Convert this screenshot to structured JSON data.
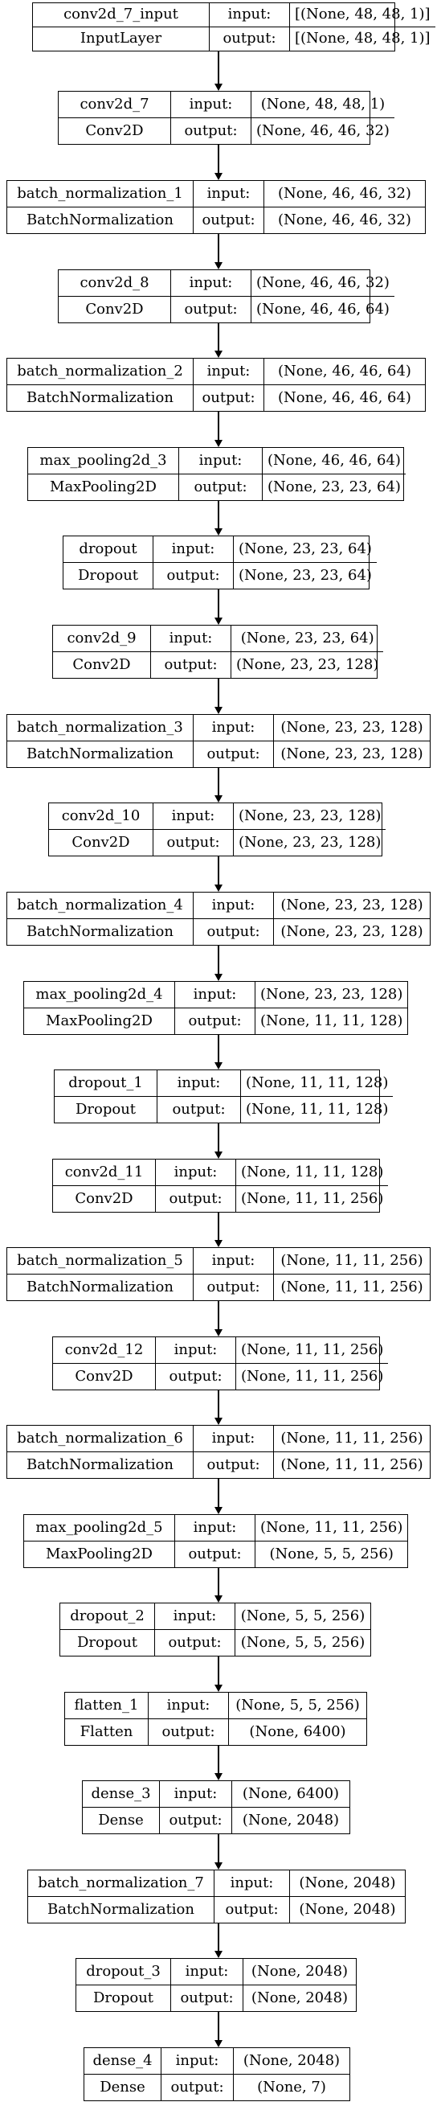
{
  "layers": [
    {
      "name": "conv2d_7_input",
      "type": "InputLayer",
      "input": "[(None, 48, 48, 1)]",
      "output": "[(None, 48, 48, 1)]"
    },
    {
      "name": "conv2d_7",
      "type": "Conv2D",
      "input": "(None, 48, 48, 1)",
      "output": "(None, 46, 46, 32)"
    },
    {
      "name": "batch_normalization_1",
      "type": "BatchNormalization",
      "input": "(None, 46, 46, 32)",
      "output": "(None, 46, 46, 32)"
    },
    {
      "name": "conv2d_8",
      "type": "Conv2D",
      "input": "(None, 46, 46, 32)",
      "output": "(None, 46, 46, 64)"
    },
    {
      "name": "batch_normalization_2",
      "type": "BatchNormalization",
      "input": "(None, 46, 46, 64)",
      "output": "(None, 46, 46, 64)"
    },
    {
      "name": "max_pooling2d_3",
      "type": "MaxPooling2D",
      "input": "(None, 46, 46, 64)",
      "output": "(None, 23, 23, 64)"
    },
    {
      "name": "dropout",
      "type": "Dropout",
      "input": "(None, 23, 23, 64)",
      "output": "(None, 23, 23, 64)"
    },
    {
      "name": "conv2d_9",
      "type": "Conv2D",
      "input": "(None, 23, 23, 64)",
      "output": "(None, 23, 23, 128)"
    },
    {
      "name": "batch_normalization_3",
      "type": "BatchNormalization",
      "input": "(None, 23, 23, 128)",
      "output": "(None, 23, 23, 128)"
    },
    {
      "name": "conv2d_10",
      "type": "Conv2D",
      "input": "(None, 23, 23, 128)",
      "output": "(None, 23, 23, 128)"
    },
    {
      "name": "batch_normalization_4",
      "type": "BatchNormalization",
      "input": "(None, 23, 23, 128)",
      "output": "(None, 23, 23, 128)"
    },
    {
      "name": "max_pooling2d_4",
      "type": "MaxPooling2D",
      "input": "(None, 23, 23, 128)",
      "output": "(None, 11, 11, 128)"
    },
    {
      "name": "dropout_1",
      "type": "Dropout",
      "input": "(None, 11, 11, 128)",
      "output": "(None, 11, 11, 128)"
    },
    {
      "name": "conv2d_11",
      "type": "Conv2D",
      "input": "(None, 11, 11, 128)",
      "output": "(None, 11, 11, 256)"
    },
    {
      "name": "batch_normalization_5",
      "type": "BatchNormalization",
      "input": "(None, 11, 11, 256)",
      "output": "(None, 11, 11, 256)"
    },
    {
      "name": "conv2d_12",
      "type": "Conv2D",
      "input": "(None, 11, 11, 256)",
      "output": "(None, 11, 11, 256)"
    },
    {
      "name": "batch_normalization_6",
      "type": "BatchNormalization",
      "input": "(None, 11, 11, 256)",
      "output": "(None, 11, 11, 256)"
    },
    {
      "name": "max_pooling2d_5",
      "type": "MaxPooling2D",
      "input": "(None, 11, 11, 256)",
      "output": "(None, 5, 5, 256)"
    },
    {
      "name": "dropout_2",
      "type": "Dropout",
      "input": "(None, 5, 5, 256)",
      "output": "(None, 5, 5, 256)"
    },
    {
      "name": "flatten_1",
      "type": "Flatten",
      "input": "(None, 5, 5, 256)",
      "output": "(None, 6400)"
    },
    {
      "name": "dense_3",
      "type": "Dense",
      "input": "(None, 6400)",
      "output": "(None, 2048)"
    },
    {
      "name": "batch_normalization_7",
      "type": "BatchNormalization",
      "input": "(None, 2048)",
      "output": "(None, 2048)"
    },
    {
      "name": "dropout_3",
      "type": "Dropout",
      "input": "(None, 2048)",
      "output": "(None, 2048)"
    },
    {
      "name": "dense_4",
      "type": "Dense",
      "input": "(None, 2048)",
      "output": "(None, 7)"
    }
  ],
  "labels": {
    "input": "input:",
    "output": "output:"
  }
}
